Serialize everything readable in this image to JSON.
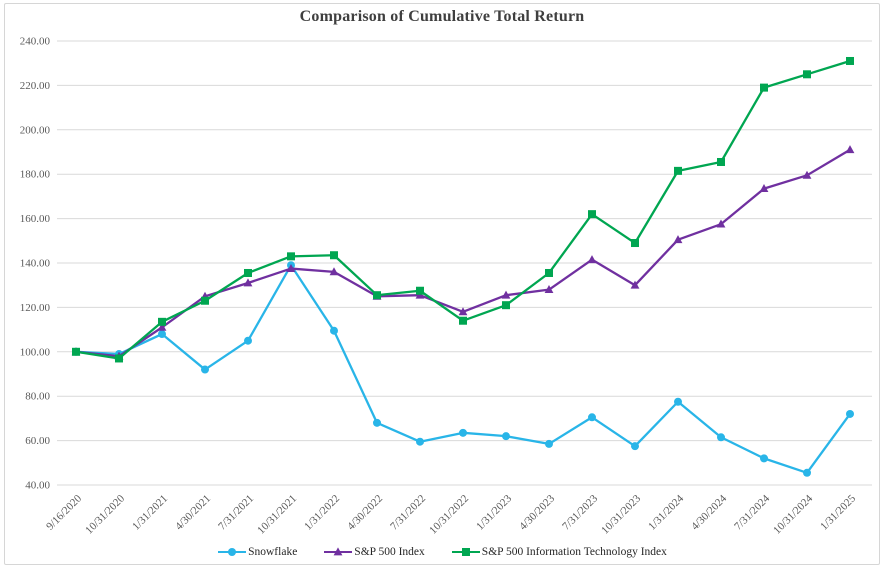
{
  "title": "Comparison of Cumulative Total Return",
  "colors": {
    "gridline": "#d9d9d9",
    "axis_text": "#595959",
    "title_text": "#3f3f3f",
    "border": "#d6d6d6",
    "legend_text": "#262626"
  },
  "chart_data": {
    "type": "line",
    "title": "Comparison of Cumulative Total Return",
    "categories": [
      "9/16/2020",
      "10/31/2020",
      "1/31/2021",
      "4/30/2021",
      "7/31/2021",
      "10/31/2021",
      "1/31/2022",
      "4/30/2022",
      "7/31/2022",
      "10/31/2022",
      "1/31/2023",
      "4/30/2023",
      "7/31/2023",
      "10/31/2023",
      "1/31/2024",
      "4/30/2024",
      "7/31/2024",
      "10/31/2024",
      "1/31/2025"
    ],
    "series": [
      {
        "name": "Snowflake",
        "color": "#29B5E8",
        "marker": "circle",
        "values": [
          100,
          99,
          108,
          92,
          105,
          139,
          109.5,
          68,
          59.5,
          63.5,
          62,
          58.5,
          70.5,
          57.5,
          77.5,
          61.5,
          52,
          45.5,
          72
        ]
      },
      {
        "name": "S&P 500 Index",
        "color": "#7030A0",
        "marker": "triangle",
        "values": [
          100,
          98,
          111,
          125,
          131,
          137.5,
          136,
          125,
          125.5,
          118,
          125.5,
          128,
          141.5,
          130,
          150.5,
          157.5,
          173.5,
          179.5,
          191
        ]
      },
      {
        "name": "S&P 500 Information Technology Index",
        "color": "#00A651",
        "marker": "square",
        "values": [
          100,
          97,
          113.5,
          123,
          135.5,
          143,
          143.5,
          125.5,
          127.5,
          114,
          121,
          135.5,
          162,
          149,
          181.5,
          185.5,
          219,
          225,
          231
        ]
      }
    ],
    "ylim": [
      40,
      240
    ],
    "ystep": 20,
    "ytick_format": "0.00",
    "grid": "horizontal-only",
    "legend_position": "bottom",
    "xlabel": "",
    "ylabel": ""
  }
}
